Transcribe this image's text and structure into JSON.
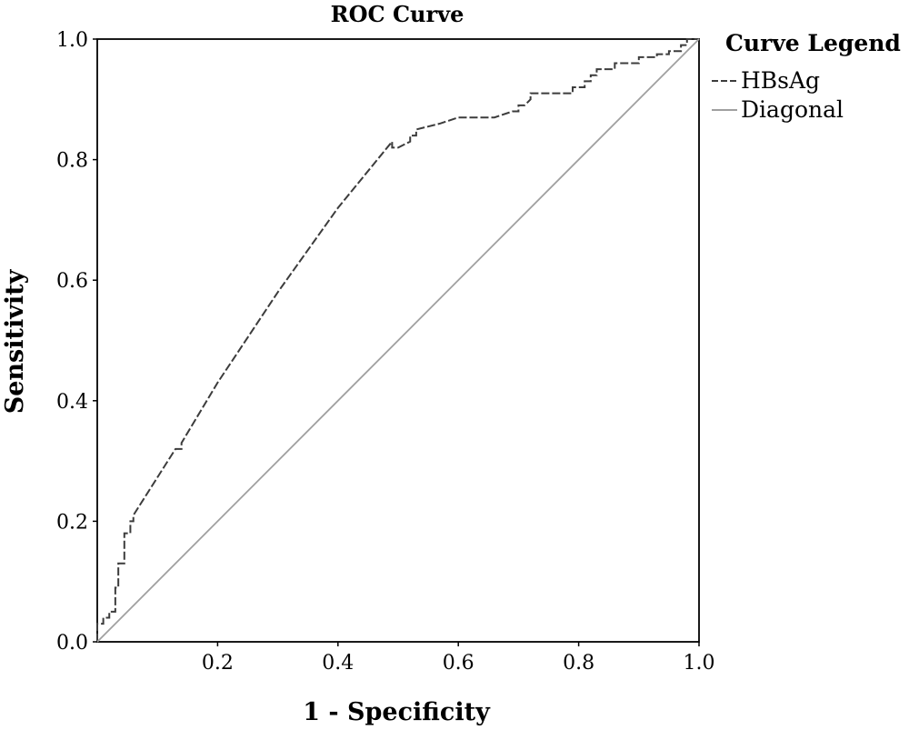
{
  "chart_data": {
    "type": "line",
    "title": "ROC Curve",
    "xlabel": "1 - Specificity",
    "ylabel": "Sensitivity",
    "xlim": [
      0,
      1
    ],
    "ylim": [
      0,
      1
    ],
    "x_ticks": [
      "0.2",
      "0.4",
      "0.6",
      "0.8",
      "1.0"
    ],
    "x_tick_values": [
      0.2,
      0.4,
      0.6,
      0.8,
      1.0
    ],
    "y_ticks": [
      "0.0",
      "0.2",
      "0.4",
      "0.6",
      "0.8",
      "1.0"
    ],
    "y_tick_values": [
      0.0,
      0.2,
      0.4,
      0.6,
      0.8,
      1.0
    ],
    "grid": false,
    "legend": {
      "title": "Curve Legend",
      "position": "right",
      "entries": [
        "HBsAg",
        "Diagonal"
      ]
    },
    "series": [
      {
        "name": "HBsAg",
        "color": "#3c3c3c",
        "dash": "dashed",
        "step": true,
        "x": [
          0.0,
          0.0,
          0.01,
          0.01,
          0.02,
          0.02,
          0.03,
          0.03,
          0.035,
          0.035,
          0.045,
          0.045,
          0.055,
          0.055,
          0.06,
          0.06,
          0.13,
          0.14,
          0.14,
          0.2,
          0.3,
          0.4,
          0.49,
          0.49,
          0.5,
          0.52,
          0.52,
          0.53,
          0.53,
          0.57,
          0.6,
          0.66,
          0.69,
          0.7,
          0.7,
          0.71,
          0.72,
          0.72,
          0.74,
          0.78,
          0.79,
          0.79,
          0.81,
          0.81,
          0.82,
          0.82,
          0.83,
          0.83,
          0.86,
          0.86,
          0.88,
          0.88,
          0.9,
          0.9,
          0.93,
          0.93,
          0.95,
          0.95,
          0.97,
          0.97,
          0.98,
          0.98,
          1.0,
          1.0
        ],
        "y": [
          0.0,
          0.03,
          0.03,
          0.04,
          0.04,
          0.05,
          0.05,
          0.09,
          0.09,
          0.13,
          0.13,
          0.18,
          0.18,
          0.2,
          0.2,
          0.21,
          0.32,
          0.32,
          0.33,
          0.43,
          0.58,
          0.72,
          0.83,
          0.82,
          0.82,
          0.83,
          0.84,
          0.84,
          0.85,
          0.86,
          0.87,
          0.87,
          0.88,
          0.88,
          0.89,
          0.89,
          0.9,
          0.91,
          0.91,
          0.91,
          0.91,
          0.92,
          0.92,
          0.93,
          0.93,
          0.94,
          0.94,
          0.95,
          0.95,
          0.96,
          0.96,
          0.96,
          0.96,
          0.97,
          0.97,
          0.975,
          0.975,
          0.98,
          0.98,
          0.99,
          0.99,
          1.0,
          1.0,
          1.0
        ]
      },
      {
        "name": "Diagonal",
        "color": "#a0a0a0",
        "dash": "solid",
        "x": [
          0,
          1
        ],
        "y": [
          0,
          1
        ]
      }
    ]
  }
}
